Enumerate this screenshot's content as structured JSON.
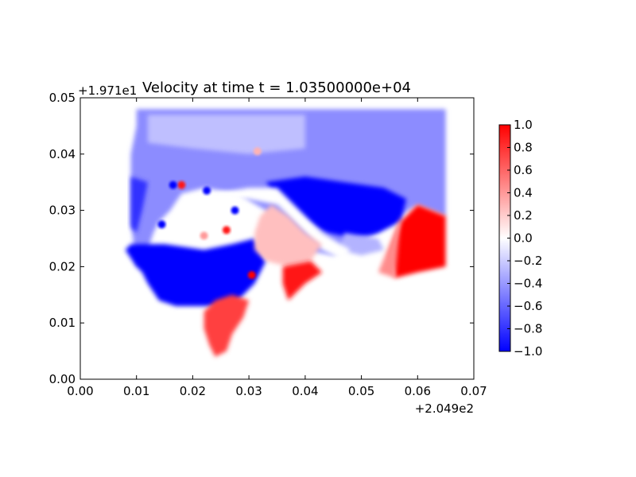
{
  "chart_data": {
    "type": "heatmap",
    "title": "Velocity at time t = 1.03500000e+04",
    "x": {
      "lim": [
        0.0,
        0.07
      ],
      "ticks": [
        0.0,
        0.01,
        0.02,
        0.03,
        0.04,
        0.05,
        0.06,
        0.07
      ],
      "tick_labels": [
        "0.00",
        "0.01",
        "0.02",
        "0.03",
        "0.04",
        "0.05",
        "0.06",
        "0.07"
      ],
      "offset_text": "+2.049e2"
    },
    "y": {
      "lim": [
        0.0,
        0.05
      ],
      "ticks": [
        0.0,
        0.01,
        0.02,
        0.03,
        0.04,
        0.05
      ],
      "tick_labels": [
        "0.00",
        "0.01",
        "0.02",
        "0.03",
        "0.04",
        "0.05"
      ],
      "offset_text": "+1.971e1"
    },
    "colorbar": {
      "lim": [
        -1.0,
        1.0
      ],
      "ticks": [
        1.0,
        0.8,
        0.6,
        0.4,
        0.2,
        0.0,
        -0.2,
        -0.4,
        -0.6,
        -0.8,
        -1.0
      ],
      "tick_labels": [
        "1.0",
        "0.8",
        "0.6",
        "0.4",
        "0.2",
        "0.0",
        "−0.2",
        "−0.4",
        "−0.6",
        "−0.8",
        "−1.0"
      ],
      "colormap": "bwr",
      "colors": {
        "low": "#0000ff",
        "mid": "#ffffff",
        "high": "#ff0000"
      }
    },
    "regions": [
      {
        "name": "main-field",
        "value": -0.45,
        "polygon": [
          [
            0.01,
            0.048
          ],
          [
            0.065,
            0.048
          ],
          [
            0.065,
            0.029
          ],
          [
            0.06,
            0.031
          ],
          [
            0.055,
            0.028
          ],
          [
            0.05,
            0.024
          ],
          [
            0.045,
            0.022
          ],
          [
            0.04,
            0.023
          ],
          [
            0.036,
            0.026
          ],
          [
            0.033,
            0.03
          ],
          [
            0.028,
            0.033
          ],
          [
            0.022,
            0.034
          ],
          [
            0.018,
            0.033
          ],
          [
            0.016,
            0.03
          ],
          [
            0.014,
            0.028
          ],
          [
            0.013,
            0.026
          ],
          [
            0.012,
            0.023
          ],
          [
            0.011,
            0.021
          ],
          [
            0.01,
            0.02
          ],
          [
            0.009,
            0.028
          ],
          [
            0.009,
            0.04
          ],
          [
            0.01,
            0.045
          ]
        ]
      },
      {
        "name": "left-lobe",
        "value": -0.8,
        "polygon": [
          [
            0.009,
            0.036
          ],
          [
            0.012,
            0.035
          ],
          [
            0.011,
            0.03
          ],
          [
            0.01,
            0.026
          ],
          [
            0.009,
            0.027
          ]
        ]
      },
      {
        "name": "lower-basin",
        "value": -1.0,
        "polygon": [
          [
            0.009,
            0.024
          ],
          [
            0.015,
            0.024
          ],
          [
            0.022,
            0.023
          ],
          [
            0.027,
            0.024
          ],
          [
            0.031,
            0.025
          ],
          [
            0.033,
            0.021
          ],
          [
            0.031,
            0.017
          ],
          [
            0.028,
            0.014
          ],
          [
            0.024,
            0.013
          ],
          [
            0.017,
            0.013
          ],
          [
            0.014,
            0.014
          ],
          [
            0.012,
            0.017
          ],
          [
            0.011,
            0.019
          ],
          [
            0.01,
            0.02
          ],
          [
            0.008,
            0.023
          ]
        ]
      },
      {
        "name": "upper-right-basin",
        "value": -1.0,
        "polygon": [
          [
            0.033,
            0.035
          ],
          [
            0.04,
            0.036
          ],
          [
            0.047,
            0.035
          ],
          [
            0.054,
            0.034
          ],
          [
            0.058,
            0.032
          ],
          [
            0.057,
            0.028
          ],
          [
            0.053,
            0.026
          ],
          [
            0.049,
            0.025
          ],
          [
            0.044,
            0.026
          ],
          [
            0.04,
            0.028
          ],
          [
            0.036,
            0.031
          ]
        ]
      },
      {
        "name": "right-shore",
        "value": -0.3,
        "polygon": [
          [
            0.047,
            0.026
          ],
          [
            0.053,
            0.025
          ],
          [
            0.054,
            0.023
          ],
          [
            0.05,
            0.022
          ],
          [
            0.046,
            0.023
          ]
        ]
      },
      {
        "name": "shoreline-strip",
        "value": 0.0,
        "polygon": [
          [
            0.024,
            0.033
          ],
          [
            0.03,
            0.034
          ],
          [
            0.035,
            0.034
          ],
          [
            0.039,
            0.03
          ],
          [
            0.043,
            0.026
          ],
          [
            0.048,
            0.023
          ],
          [
            0.047,
            0.021
          ],
          [
            0.043,
            0.023
          ],
          [
            0.039,
            0.027
          ],
          [
            0.035,
            0.031
          ],
          [
            0.03,
            0.032
          ],
          [
            0.025,
            0.032
          ]
        ]
      },
      {
        "name": "central-estuary",
        "value": 0.25,
        "polygon": [
          [
            0.034,
            0.031
          ],
          [
            0.037,
            0.029
          ],
          [
            0.04,
            0.026
          ],
          [
            0.043,
            0.024
          ],
          [
            0.041,
            0.021
          ],
          [
            0.037,
            0.02
          ],
          [
            0.033,
            0.021
          ],
          [
            0.031,
            0.023
          ],
          [
            0.031,
            0.026
          ],
          [
            0.032,
            0.029
          ]
        ]
      },
      {
        "name": "estuary-channel",
        "value": 0.9,
        "polygon": [
          [
            0.036,
            0.02
          ],
          [
            0.041,
            0.021
          ],
          [
            0.043,
            0.019
          ],
          [
            0.04,
            0.017
          ],
          [
            0.038,
            0.015
          ],
          [
            0.037,
            0.014
          ],
          [
            0.036,
            0.017
          ]
        ]
      },
      {
        "name": "southern-channel",
        "value": 0.75,
        "polygon": [
          [
            0.027,
            0.015
          ],
          [
            0.03,
            0.014
          ],
          [
            0.029,
            0.011
          ],
          [
            0.027,
            0.008
          ],
          [
            0.026,
            0.005
          ],
          [
            0.024,
            0.004
          ],
          [
            0.023,
            0.006
          ],
          [
            0.022,
            0.009
          ],
          [
            0.022,
            0.012
          ],
          [
            0.024,
            0.014
          ]
        ]
      },
      {
        "name": "east-inlet",
        "value": 1.0,
        "polygon": [
          [
            0.057,
            0.028
          ],
          [
            0.06,
            0.031
          ],
          [
            0.065,
            0.029
          ],
          [
            0.065,
            0.02
          ],
          [
            0.06,
            0.019
          ],
          [
            0.056,
            0.018
          ],
          [
            0.055,
            0.022
          ]
        ]
      },
      {
        "name": "east-inlet-fringe",
        "value": 0.45,
        "polygon": [
          [
            0.055,
            0.024
          ],
          [
            0.057,
            0.029
          ],
          [
            0.056,
            0.018
          ],
          [
            0.053,
            0.019
          ]
        ]
      },
      {
        "name": "north-shelf",
        "value": -0.25,
        "polygon": [
          [
            0.012,
            0.047
          ],
          [
            0.04,
            0.047
          ],
          [
            0.04,
            0.041
          ],
          [
            0.03,
            0.04
          ],
          [
            0.02,
            0.041
          ],
          [
            0.012,
            0.042
          ]
        ]
      }
    ],
    "hotspots": [
      {
        "x": 0.018,
        "y": 0.0345,
        "value": 0.9
      },
      {
        "x": 0.0315,
        "y": 0.0405,
        "value": 0.3
      },
      {
        "x": 0.026,
        "y": 0.0265,
        "value": 0.9
      },
      {
        "x": 0.0305,
        "y": 0.0185,
        "value": 1.0
      },
      {
        "x": 0.022,
        "y": 0.0255,
        "value": 0.4
      },
      {
        "x": 0.0165,
        "y": 0.0345,
        "value": -1.0
      },
      {
        "x": 0.0275,
        "y": 0.03,
        "value": -1.0
      },
      {
        "x": 0.0225,
        "y": 0.0335,
        "value": -1.0
      },
      {
        "x": 0.0145,
        "y": 0.0275,
        "value": -1.0
      }
    ]
  }
}
